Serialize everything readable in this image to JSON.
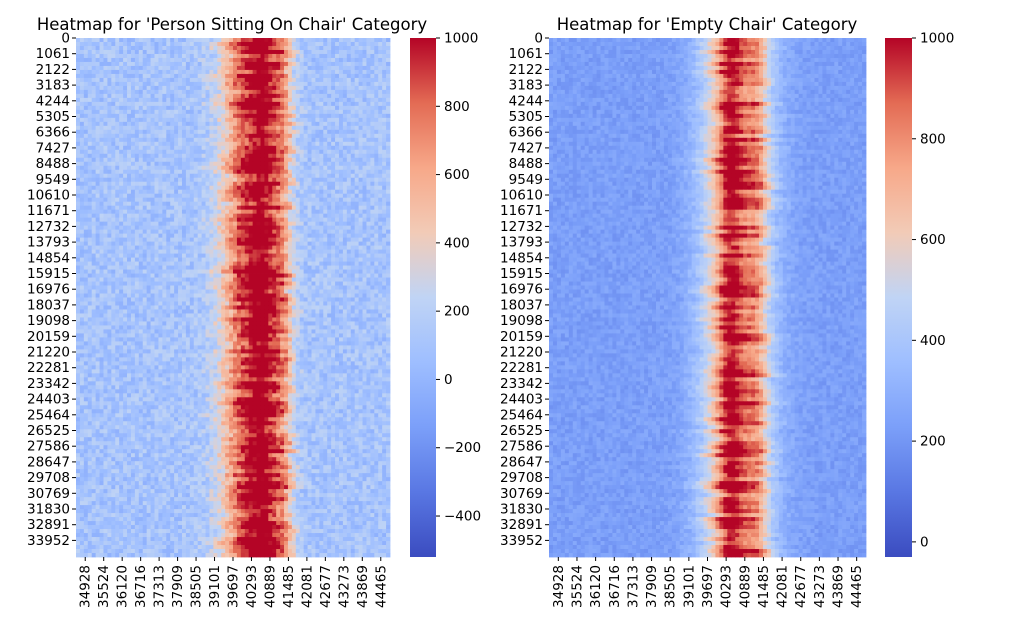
{
  "chart_data": [
    {
      "type": "heatmap",
      "title": "Heatmap for 'Person Sitting On Chair' Category",
      "colormap": "coolwarm",
      "y_tick_labels": [
        "0",
        "1061",
        "2122",
        "3183",
        "4244",
        "5305",
        "6366",
        "7427",
        "8488",
        "9549",
        "10610",
        "11671",
        "12732",
        "13793",
        "14854",
        "15915",
        "16976",
        "18037",
        "19098",
        "20159",
        "21220",
        "22281",
        "23342",
        "24403",
        "25464",
        "26525",
        "27586",
        "28647",
        "29708",
        "30769",
        "31830",
        "32891",
        "33952"
      ],
      "x_tick_labels": [
        "34928",
        "35524",
        "36120",
        "36716",
        "37313",
        "37909",
        "38505",
        "39101",
        "39697",
        "40293",
        "40889",
        "41485",
        "42081",
        "42677",
        "43273",
        "43869",
        "44465"
      ],
      "colorbar": {
        "min": -520,
        "max": 1000,
        "ticks": [
          1000,
          800,
          600,
          400,
          200,
          0,
          -200,
          -400
        ],
        "tick_labels": [
          "1000",
          "800",
          "600",
          "400",
          "200",
          "0",
          "−200",
          "−400"
        ]
      },
      "profile": {
        "background": 100,
        "bands": [
          {
            "center": 40520,
            "width": 900,
            "peak": 820
          },
          {
            "center": 40980,
            "width": 380,
            "peak": 380
          },
          {
            "center": 41560,
            "width": 320,
            "peak": 380
          }
        ]
      }
    },
    {
      "type": "heatmap",
      "title": "Heatmap for 'Empty Chair' Category",
      "colormap": "coolwarm",
      "y_tick_labels": [
        "0",
        "1061",
        "2122",
        "3183",
        "4244",
        "5305",
        "6366",
        "7427",
        "8488",
        "9549",
        "10610",
        "11671",
        "12732",
        "13793",
        "14854",
        "15915",
        "16976",
        "18037",
        "19098",
        "20159",
        "21220",
        "22281",
        "23342",
        "24403",
        "25464",
        "26525",
        "27586",
        "28647",
        "29708",
        "30769",
        "31830",
        "32891",
        "33952"
      ],
      "x_tick_labels": [
        "34928",
        "35524",
        "36120",
        "36716",
        "37313",
        "37909",
        "38505",
        "39101",
        "39697",
        "40293",
        "40889",
        "41485",
        "42081",
        "42677",
        "43273",
        "43869",
        "44465"
      ],
      "colorbar": {
        "min": -30,
        "max": 1000,
        "ticks": [
          1000,
          800,
          600,
          400,
          200,
          0
        ],
        "tick_labels": [
          "1000",
          "800",
          "600",
          "400",
          "200",
          "0"
        ]
      },
      "profile": {
        "background": 230,
        "bands": [
          {
            "center": 40880,
            "width": 1050,
            "peak": 620
          },
          {
            "center": 40670,
            "width": 300,
            "peak": 220
          },
          {
            "center": 41550,
            "width": 300,
            "peak": 150
          }
        ]
      }
    }
  ]
}
